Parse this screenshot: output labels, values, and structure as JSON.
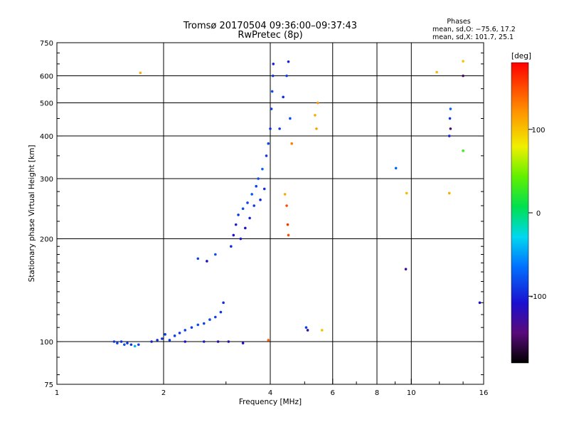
{
  "chart_data": {
    "type": "scatter",
    "title": "Tromsø 20170504 09:36:00–09:37:43",
    "subtitle": "RwPretec (8p)",
    "xlabel": "Frequency [MHz]",
    "ylabel": "Stationary phase Virtual Height [km]",
    "x_scale": "log",
    "y_scale": "log",
    "xlim": [
      1,
      16
    ],
    "ylim": [
      75,
      750
    ],
    "x_ticks": [
      1,
      2,
      4,
      6,
      8,
      10,
      16
    ],
    "y_ticks": [
      75,
      100,
      200,
      300,
      400,
      500,
      600,
      750
    ],
    "grid_x": [
      2,
      4,
      6,
      8,
      10
    ],
    "grid_y": [
      100,
      200,
      300,
      400,
      500,
      600
    ],
    "phase_stats": {
      "header": "Phases",
      "line_O": "mean, sd,O: −75.6, 17.2",
      "line_X": "mean, sd,X: 101.7, 25.1"
    },
    "colorbar": {
      "label": "[deg]",
      "range": [
        -180,
        180
      ],
      "ticks": [
        100,
        0,
        -100
      ],
      "colormap": "rainbow (black → purple → blue → cyan → green → yellow → orange → red)"
    },
    "series": [
      {
        "points": [
          {
            "x": 1.45,
            "y": 100,
            "phase": -90
          },
          {
            "x": 1.48,
            "y": 99,
            "phase": -85
          },
          {
            "x": 1.52,
            "y": 100,
            "phase": -95
          },
          {
            "x": 1.55,
            "y": 98,
            "phase": -80
          },
          {
            "x": 1.58,
            "y": 99,
            "phase": -88
          },
          {
            "x": 1.62,
            "y": 98,
            "phase": -92
          },
          {
            "x": 1.66,
            "y": 97,
            "phase": -40
          },
          {
            "x": 1.7,
            "y": 98,
            "phase": -85
          },
          {
            "x": 1.85,
            "y": 100,
            "phase": -100
          },
          {
            "x": 1.92,
            "y": 101,
            "phase": -95
          },
          {
            "x": 1.98,
            "y": 102,
            "phase": -90
          },
          {
            "x": 2.02,
            "y": 105,
            "phase": -88
          },
          {
            "x": 2.08,
            "y": 101,
            "phase": -92
          },
          {
            "x": 2.15,
            "y": 104,
            "phase": -86
          },
          {
            "x": 2.22,
            "y": 106,
            "phase": -90
          },
          {
            "x": 2.3,
            "y": 108,
            "phase": -84
          },
          {
            "x": 2.4,
            "y": 110,
            "phase": -88
          },
          {
            "x": 2.5,
            "y": 112,
            "phase": -82
          },
          {
            "x": 2.6,
            "y": 113,
            "phase": -86
          },
          {
            "x": 2.7,
            "y": 116,
            "phase": -84
          },
          {
            "x": 2.8,
            "y": 118,
            "phase": -88
          },
          {
            "x": 2.9,
            "y": 122,
            "phase": -90
          },
          {
            "x": 2.95,
            "y": 130,
            "phase": -95
          },
          {
            "x": 2.3,
            "y": 100,
            "phase": -110
          },
          {
            "x": 2.6,
            "y": 100,
            "phase": -105
          },
          {
            "x": 2.85,
            "y": 100,
            "phase": -115
          },
          {
            "x": 3.05,
            "y": 100,
            "phase": -120
          },
          {
            "x": 3.35,
            "y": 99,
            "phase": -110
          },
          {
            "x": 3.95,
            "y": 101,
            "phase": 140
          },
          {
            "x": 1.72,
            "y": 612,
            "phase": 110
          },
          {
            "x": 2.5,
            "y": 175,
            "phase": -85
          },
          {
            "x": 2.65,
            "y": 172,
            "phase": -110
          },
          {
            "x": 2.8,
            "y": 180,
            "phase": -80
          },
          {
            "x": 3.1,
            "y": 190,
            "phase": -95
          },
          {
            "x": 3.15,
            "y": 205,
            "phase": -110
          },
          {
            "x": 3.2,
            "y": 220,
            "phase": -100
          },
          {
            "x": 3.25,
            "y": 235,
            "phase": -90
          },
          {
            "x": 3.3,
            "y": 200,
            "phase": -105
          },
          {
            "x": 3.35,
            "y": 245,
            "phase": -80
          },
          {
            "x": 3.4,
            "y": 215,
            "phase": -115
          },
          {
            "x": 3.45,
            "y": 255,
            "phase": -85
          },
          {
            "x": 3.5,
            "y": 230,
            "phase": -100
          },
          {
            "x": 3.55,
            "y": 270,
            "phase": -75
          },
          {
            "x": 3.6,
            "y": 250,
            "phase": -90
          },
          {
            "x": 3.65,
            "y": 285,
            "phase": -85
          },
          {
            "x": 3.7,
            "y": 300,
            "phase": -80
          },
          {
            "x": 3.75,
            "y": 260,
            "phase": -100
          },
          {
            "x": 3.8,
            "y": 320,
            "phase": -70
          },
          {
            "x": 3.85,
            "y": 280,
            "phase": -95
          },
          {
            "x": 3.9,
            "y": 350,
            "phase": -90
          },
          {
            "x": 3.95,
            "y": 380,
            "phase": -85
          },
          {
            "x": 4.0,
            "y": 420,
            "phase": -95
          },
          {
            "x": 4.03,
            "y": 480,
            "phase": -88
          },
          {
            "x": 4.05,
            "y": 540,
            "phase": -80
          },
          {
            "x": 4.07,
            "y": 600,
            "phase": -90
          },
          {
            "x": 4.08,
            "y": 650,
            "phase": -100
          },
          {
            "x": 4.25,
            "y": 420,
            "phase": -90
          },
          {
            "x": 4.35,
            "y": 520,
            "phase": -95
          },
          {
            "x": 4.45,
            "y": 600,
            "phase": -85
          },
          {
            "x": 4.5,
            "y": 660,
            "phase": -100
          },
          {
            "x": 4.55,
            "y": 450,
            "phase": -80
          },
          {
            "x": 4.6,
            "y": 380,
            "phase": 130
          },
          {
            "x": 4.4,
            "y": 270,
            "phase": 110
          },
          {
            "x": 4.45,
            "y": 250,
            "phase": 150
          },
          {
            "x": 4.48,
            "y": 220,
            "phase": 160
          },
          {
            "x": 4.5,
            "y": 205,
            "phase": 150
          },
          {
            "x": 5.35,
            "y": 460,
            "phase": 110
          },
          {
            "x": 5.4,
            "y": 420,
            "phase": 115
          },
          {
            "x": 5.45,
            "y": 500,
            "phase": 120
          },
          {
            "x": 5.05,
            "y": 110,
            "phase": -90
          },
          {
            "x": 5.1,
            "y": 108,
            "phase": -120
          },
          {
            "x": 5.6,
            "y": 108,
            "phase": 100
          },
          {
            "x": 9.05,
            "y": 322,
            "phase": -70
          },
          {
            "x": 9.7,
            "y": 272,
            "phase": 105
          },
          {
            "x": 9.65,
            "y": 163,
            "phase": -130
          },
          {
            "x": 11.8,
            "y": 615,
            "phase": 105
          },
          {
            "x": 12.8,
            "y": 272,
            "phase": 110
          },
          {
            "x": 12.9,
            "y": 480,
            "phase": -70
          },
          {
            "x": 12.85,
            "y": 450,
            "phase": -90
          },
          {
            "x": 12.9,
            "y": 420,
            "phase": -150
          },
          {
            "x": 12.8,
            "y": 400,
            "phase": -100
          },
          {
            "x": 14.0,
            "y": 662,
            "phase": 100
          },
          {
            "x": 14.0,
            "y": 600,
            "phase": -150
          },
          {
            "x": 14.0,
            "y": 362,
            "phase": 30
          },
          {
            "x": 15.6,
            "y": 130,
            "phase": -110
          }
        ]
      }
    ]
  }
}
